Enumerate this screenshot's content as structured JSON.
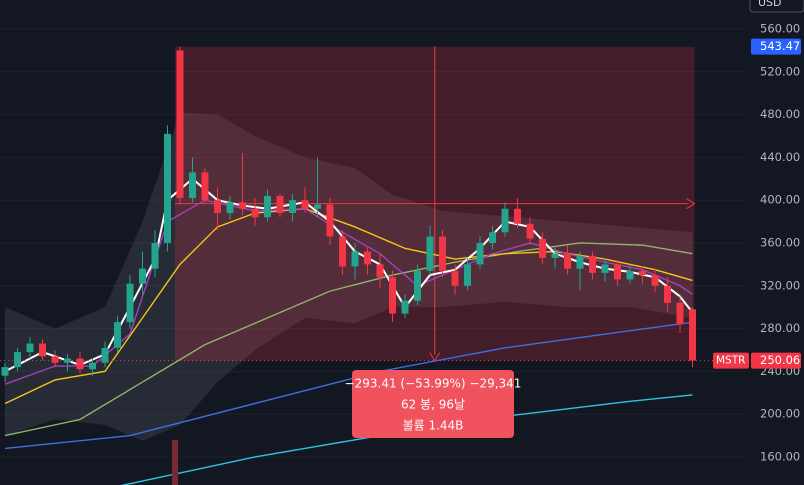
{
  "chart_data": {
    "type": "candlestick",
    "currency": "USD",
    "symbol": "MSTR",
    "up_color": "#22a48e",
    "down_color": "#f23645",
    "ylim": [
      133.8,
      587.1
    ],
    "yticks": [
      {
        "value": 160,
        "label": "160.00"
      },
      {
        "value": 200,
        "label": "200.00"
      },
      {
        "value": 240,
        "label": "240.00"
      },
      {
        "value": 280,
        "label": "280.00"
      },
      {
        "value": 320,
        "label": "320.00"
      },
      {
        "value": 360,
        "label": "360.00"
      },
      {
        "value": 400,
        "label": "400.00"
      },
      {
        "value": 440,
        "label": "440.00"
      },
      {
        "value": 480,
        "label": "480.00"
      },
      {
        "value": 520,
        "label": "520.00"
      },
      {
        "value": 560,
        "label": "560.00"
      }
    ],
    "candles": {
      "open": [
        236,
        244,
        258,
        266,
        254,
        248,
        252,
        242,
        248,
        262,
        286,
        322,
        336,
        360,
        540,
        402,
        426,
        400,
        388,
        398,
        392,
        384,
        404,
        388,
        400,
        392,
        396,
        366,
        338,
        352,
        340,
        328,
        294,
        306,
        334,
        366,
        334,
        320,
        340,
        360,
        370,
        392,
        378,
        364,
        346,
        350,
        336,
        348,
        332,
        340,
        326,
        334,
        330,
        320,
        304,
        298
      ],
      "high": [
        248,
        262,
        272,
        270,
        260,
        256,
        258,
        252,
        268,
        292,
        330,
        352,
        372,
        470,
        543.47,
        440,
        430,
        412,
        404,
        444,
        402,
        410,
        406,
        406,
        412,
        440,
        402,
        372,
        360,
        356,
        350,
        334,
        312,
        340,
        376,
        372,
        340,
        346,
        366,
        376,
        398,
        402,
        384,
        370,
        356,
        358,
        352,
        352,
        346,
        344,
        340,
        338,
        336,
        328,
        310,
        300
      ],
      "low": [
        230,
        240,
        252,
        250,
        244,
        240,
        238,
        236,
        244,
        258,
        280,
        312,
        328,
        352,
        396,
        398,
        396,
        372,
        382,
        386,
        376,
        380,
        384,
        380,
        388,
        384,
        358,
        330,
        326,
        330,
        318,
        286,
        290,
        302,
        330,
        328,
        312,
        316,
        336,
        354,
        366,
        374,
        358,
        340,
        336,
        330,
        316,
        326,
        324,
        320,
        322,
        322,
        314,
        296,
        276,
        244
      ],
      "close": [
        244,
        258,
        266,
        254,
        248,
        252,
        242,
        248,
        262,
        286,
        322,
        336,
        360,
        462,
        402,
        426,
        400,
        388,
        398,
        392,
        384,
        404,
        388,
        400,
        392,
        396,
        366,
        338,
        352,
        340,
        328,
        294,
        306,
        334,
        366,
        334,
        320,
        340,
        360,
        370,
        392,
        378,
        364,
        346,
        350,
        336,
        348,
        332,
        340,
        326,
        334,
        330,
        320,
        304,
        284,
        250.06
      ]
    },
    "band": {
      "color": "rgba(180,180,190,0.13)",
      "x": [
        0,
        4,
        8,
        11,
        14,
        17,
        20,
        24,
        28,
        31,
        35,
        40,
        45,
        50,
        55
      ],
      "upper": [
        300,
        280,
        300,
        380,
        482,
        480,
        460,
        440,
        430,
        405,
        390,
        385,
        380,
        375,
        370
      ],
      "lower": [
        180,
        195,
        190,
        175,
        190,
        230,
        260,
        290,
        285,
        300,
        300,
        305,
        300,
        300,
        290
      ]
    },
    "indicators": [
      {
        "color": "#2ec4e6",
        "x": [
          8,
          20,
          30,
          40,
          50,
          55
        ],
        "values": [
          130,
          160,
          180,
          198,
          212,
          218
        ]
      },
      {
        "color": "#3d6fe0",
        "x": [
          0,
          10,
          20,
          30,
          40,
          50,
          55
        ],
        "values": [
          168,
          180,
          210,
          240,
          262,
          278,
          286
        ]
      },
      {
        "color": "#8fb56a",
        "x": [
          0,
          6,
          11,
          16,
          21,
          26,
          31,
          36,
          41,
          46,
          51,
          55
        ],
        "values": [
          180,
          195,
          230,
          265,
          290,
          315,
          330,
          342,
          352,
          360,
          358,
          350
        ]
      },
      {
        "color": "#f5c518",
        "x": [
          0,
          4,
          8,
          11,
          14,
          17,
          20,
          24,
          28,
          32,
          36,
          40,
          44,
          48,
          52,
          55
        ],
        "values": [
          210,
          232,
          240,
          290,
          340,
          375,
          388,
          392,
          375,
          355,
          345,
          350,
          352,
          345,
          335,
          325
        ]
      },
      {
        "color": "#a43fbf",
        "x": [
          0,
          4,
          7,
          10,
          13,
          16,
          20,
          24,
          27,
          30,
          33,
          36,
          39,
          42,
          45,
          48,
          51,
          54,
          55
        ],
        "values": [
          228,
          245,
          245,
          275,
          380,
          400,
          390,
          392,
          370,
          350,
          320,
          335,
          350,
          360,
          350,
          342,
          335,
          320,
          312
        ]
      },
      {
        "color": "#ffffff",
        "x": [
          0,
          3,
          6,
          8,
          10,
          12,
          13,
          15,
          17,
          19,
          21,
          24,
          26,
          28,
          30,
          32,
          34,
          36,
          38,
          40,
          42,
          44,
          46,
          48,
          50,
          52,
          54,
          55
        ],
        "values": [
          240,
          258,
          246,
          256,
          300,
          345,
          400,
          420,
          400,
          395,
          392,
          398,
          380,
          352,
          340,
          300,
          330,
          335,
          355,
          380,
          375,
          350,
          342,
          336,
          333,
          328,
          310,
          295
        ]
      }
    ],
    "measure": {
      "change_label": "−293.41 (−53.99%) −29,341",
      "bars_label": "62 봉, 96날",
      "volume_label": "볼륨 1.44B"
    }
  }
}
